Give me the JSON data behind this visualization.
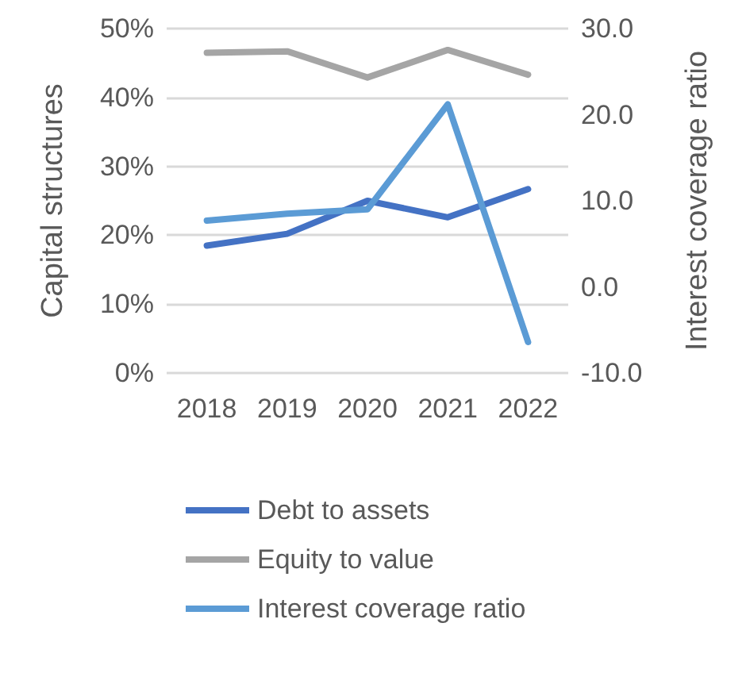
{
  "chart_data": {
    "type": "line",
    "ylabel": "Capital structures",
    "y2label": "Interest coverage ratio",
    "categories": [
      "2018",
      "2019",
      "2020",
      "2021",
      "2022"
    ],
    "series": [
      {
        "name": "Debt to assets",
        "color": "#4472c4",
        "values": [
          18.5,
          20.2,
          25.0,
          22.6,
          26.7
        ]
      },
      {
        "name": "Equity to value",
        "color": "#a5a5a5",
        "values": [
          46.5,
          46.7,
          42.9,
          46.9,
          43.3
        ]
      },
      {
        "name": "Interest coverage ratio",
        "color": "#5b9bd5",
        "axis": "y2",
        "values": [
          7.7,
          8.5,
          9.0,
          21.2,
          -6.4
        ]
      }
    ],
    "ylim": [
      0,
      50
    ],
    "yticks": [
      {
        "value": 0,
        "label": "0%"
      },
      {
        "value": 10,
        "label": "10%"
      },
      {
        "value": 20,
        "label": "20%"
      },
      {
        "value": 30,
        "label": "30%"
      },
      {
        "value": 40,
        "label": "40%"
      },
      {
        "value": 50,
        "label": "50%"
      }
    ],
    "y2lim": [
      -10,
      30
    ],
    "y2ticks": [
      {
        "value": -10,
        "label": "-10.0"
      },
      {
        "value": 0,
        "label": "0.0"
      },
      {
        "value": 10,
        "label": "10.0"
      },
      {
        "value": 20,
        "label": "20.0"
      },
      {
        "value": 30,
        "label": "30.0"
      }
    ],
    "grid": "y",
    "legend": "bottom",
    "marker": "none",
    "line_style": "solid"
  }
}
